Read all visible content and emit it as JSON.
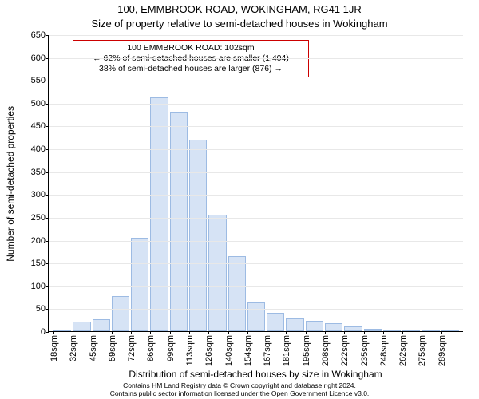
{
  "title_main": "100, EMMBROOK ROAD, WOKINGHAM, RG41 1JR",
  "title_sub": "Size of property relative to semi-detached houses in Wokingham",
  "chart": {
    "type": "histogram",
    "bar_fill": "#d6e3f5",
    "bar_stroke": "#9dbbe3",
    "bar_stroke_width": 1,
    "background_color": "#ffffff",
    "grid_color": "#e8e8e8",
    "axis_color": "#000000",
    "y": {
      "label": "Number of semi-detached properties",
      "min": 0,
      "max": 650,
      "tick_step": 50,
      "label_fontsize": 12,
      "tick_fontsize": 11
    },
    "x": {
      "label": "Distribution of semi-detached houses by size in Wokingham",
      "unit": "sqm",
      "label_fontsize": 12,
      "tick_fontsize": 11,
      "bins": [
        {
          "label": "18sqm",
          "value": 4
        },
        {
          "label": "32sqm",
          "value": 21
        },
        {
          "label": "45sqm",
          "value": 27
        },
        {
          "label": "59sqm",
          "value": 77
        },
        {
          "label": "72sqm",
          "value": 205
        },
        {
          "label": "86sqm",
          "value": 512
        },
        {
          "label": "99sqm",
          "value": 480
        },
        {
          "label": "113sqm",
          "value": 420
        },
        {
          "label": "126sqm",
          "value": 256
        },
        {
          "label": "140sqm",
          "value": 164
        },
        {
          "label": "154sqm",
          "value": 63
        },
        {
          "label": "167sqm",
          "value": 40
        },
        {
          "label": "181sqm",
          "value": 28
        },
        {
          "label": "195sqm",
          "value": 23
        },
        {
          "label": "208sqm",
          "value": 17
        },
        {
          "label": "222sqm",
          "value": 10
        },
        {
          "label": "235sqm",
          "value": 6
        },
        {
          "label": "248sqm",
          "value": 4
        },
        {
          "label": "262sqm",
          "value": 3
        },
        {
          "label": "275sqm",
          "value": 2
        },
        {
          "label": "289sqm",
          "value": 2
        }
      ]
    },
    "reference": {
      "position_bin_index": 6.3,
      "line_color": "#cc0000",
      "dash": "4,3"
    },
    "annotation": {
      "line1": "100 EMMBROOK ROAD: 102sqm",
      "line2": "← 62% of semi-detached houses are smaller (1,404)",
      "line3": "38% of semi-detached houses are larger (876) →",
      "border_color": "#cc0000",
      "background_color": "#ffffff",
      "fontsize": 10.5
    }
  },
  "footer": {
    "line1": "Contains HM Land Registry data © Crown copyright and database right 2024.",
    "line2": "Contains public sector information licensed under the Open Government Licence v3.0."
  }
}
